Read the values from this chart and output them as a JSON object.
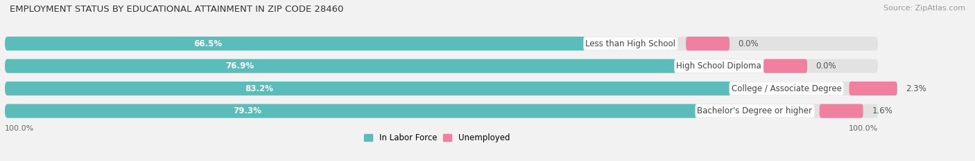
{
  "title": "EMPLOYMENT STATUS BY EDUCATIONAL ATTAINMENT IN ZIP CODE 28460",
  "source": "Source: ZipAtlas.com",
  "categories": [
    "Less than High School",
    "High School Diploma",
    "College / Associate Degree",
    "Bachelor's Degree or higher"
  ],
  "labor_force": [
    66.5,
    76.9,
    83.2,
    79.3
  ],
  "unemployed": [
    0.0,
    0.0,
    2.3,
    1.6
  ],
  "bar_color_labor": "#5bbdb9",
  "bar_color_unemployed": "#f07fa0",
  "background_color": "#f2f2f2",
  "bar_bg_color": "#e2e2e2",
  "title_fontsize": 9.5,
  "source_fontsize": 8.0,
  "label_fontsize": 8.5,
  "tick_fontsize": 8.0,
  "bar_height": 0.62,
  "legend_labor": "In Labor Force",
  "legend_unemployed": "Unemployed",
  "xlim_max": 110,
  "unemp_display": [
    0.0,
    0.0,
    2.3,
    1.6
  ],
  "unemp_bar_width": [
    5.0,
    5.0,
    5.5,
    5.0
  ]
}
